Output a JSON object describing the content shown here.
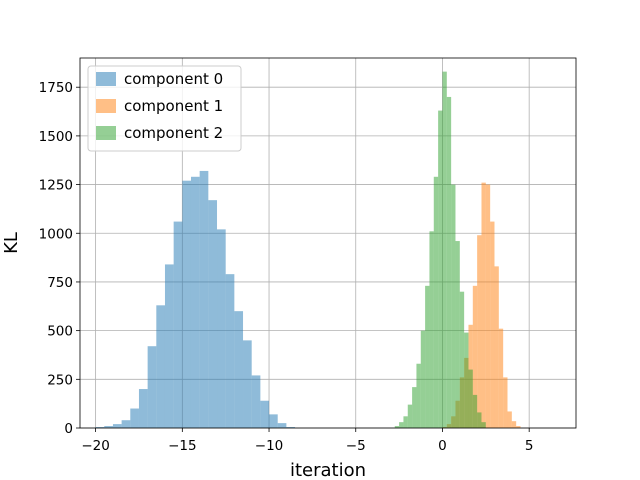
{
  "chart_data": {
    "type": "bar",
    "title": "",
    "xlabel": "iteration",
    "ylabel": "KL",
    "xlim": [
      -20.9,
      7.7
    ],
    "ylim": [
      0,
      1900
    ],
    "grid": true,
    "legend_position": "top-left",
    "x_ticks": [
      {
        "value": -20,
        "label": "−20"
      },
      {
        "value": -15,
        "label": "−15"
      },
      {
        "value": -10,
        "label": "−10"
      },
      {
        "value": -5,
        "label": "−5"
      },
      {
        "value": 0,
        "label": "0"
      },
      {
        "value": 5,
        "label": "5"
      }
    ],
    "y_ticks": [
      {
        "value": 0,
        "label": "0"
      },
      {
        "value": 250,
        "label": "250"
      },
      {
        "value": 500,
        "label": "500"
      },
      {
        "value": 750,
        "label": "750"
      },
      {
        "value": 1000,
        "label": "1000"
      },
      {
        "value": 1250,
        "label": "1250"
      },
      {
        "value": 1500,
        "label": "1500"
      },
      {
        "value": 1750,
        "label": "1750"
      }
    ],
    "series": [
      {
        "name": "component 0",
        "color": "#1f77b4",
        "alpha": 0.5,
        "bin_edges": [
          -20.0,
          -19.5,
          -19.0,
          -18.5,
          -18.0,
          -17.5,
          -17.0,
          -16.5,
          -16.0,
          -15.5,
          -15.0,
          -14.5,
          -14.0,
          -13.5,
          -13.0,
          -12.5,
          -12.0,
          -11.5,
          -11.0,
          -10.5,
          -10.0,
          -9.5,
          -9.0,
          -8.5
        ],
        "values": [
          5,
          10,
          20,
          40,
          100,
          200,
          420,
          630,
          840,
          1060,
          1270,
          1290,
          1320,
          1170,
          1020,
          790,
          600,
          450,
          270,
          140,
          70,
          25,
          5
        ]
      },
      {
        "name": "component 1",
        "color": "#ff7f0e",
        "alpha": 0.5,
        "bin_edges": [
          0.0,
          0.25,
          0.5,
          0.75,
          1.0,
          1.25,
          1.5,
          1.75,
          2.0,
          2.25,
          2.5,
          2.75,
          3.0,
          3.25,
          3.5,
          3.75,
          4.0,
          4.25,
          4.5
        ],
        "values": [
          5,
          20,
          60,
          140,
          260,
          360,
          530,
          730,
          990,
          1260,
          1250,
          1060,
          830,
          510,
          260,
          85,
          35,
          10
        ]
      },
      {
        "name": "component 2",
        "color": "#2ca02c",
        "alpha": 0.5,
        "bin_edges": [
          -2.75,
          -2.5,
          -2.25,
          -2.0,
          -1.75,
          -1.5,
          -1.25,
          -1.0,
          -0.75,
          -0.5,
          -0.25,
          0.0,
          0.25,
          0.5,
          0.75,
          1.0,
          1.25,
          1.5,
          1.75,
          2.0,
          2.25,
          2.5
        ],
        "values": [
          10,
          30,
          60,
          120,
          210,
          330,
          500,
          730,
          1010,
          1290,
          1630,
          1830,
          1700,
          1250,
          960,
          700,
          490,
          300,
          170,
          80,
          30
        ]
      }
    ]
  }
}
